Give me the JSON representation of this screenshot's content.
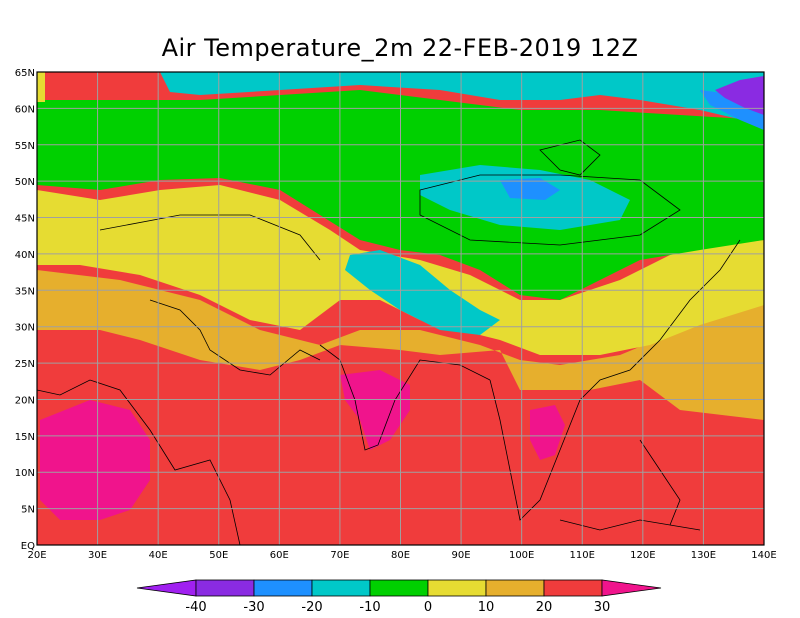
{
  "title": "Air Temperature_2m 22-FEB-2019 12Z",
  "map": {
    "lon_range": [
      20,
      140
    ],
    "lat_range": [
      0,
      65
    ],
    "lon_labels": [
      "20E",
      "30E",
      "40E",
      "50E",
      "60E",
      "70E",
      "80E",
      "90E",
      "100E",
      "110E",
      "120E",
      "130E",
      "140E"
    ],
    "lat_labels": [
      "EQ",
      "5N",
      "10N",
      "15N",
      "20N",
      "25N",
      "30N",
      "35N",
      "40N",
      "45N",
      "50N",
      "55N",
      "60N",
      "65N"
    ],
    "grid": true
  },
  "colorbar": {
    "labels": [
      "-40",
      "-30",
      "-20",
      "-10",
      "0",
      "10",
      "20",
      "30"
    ],
    "colors": [
      "#a020f0",
      "#8a2be2",
      "#1e90ff",
      "#00c8c8",
      "#00d000",
      "#e6dc32",
      "#e6af2d",
      "#f03c3c",
      "#f0148c"
    ]
  }
}
